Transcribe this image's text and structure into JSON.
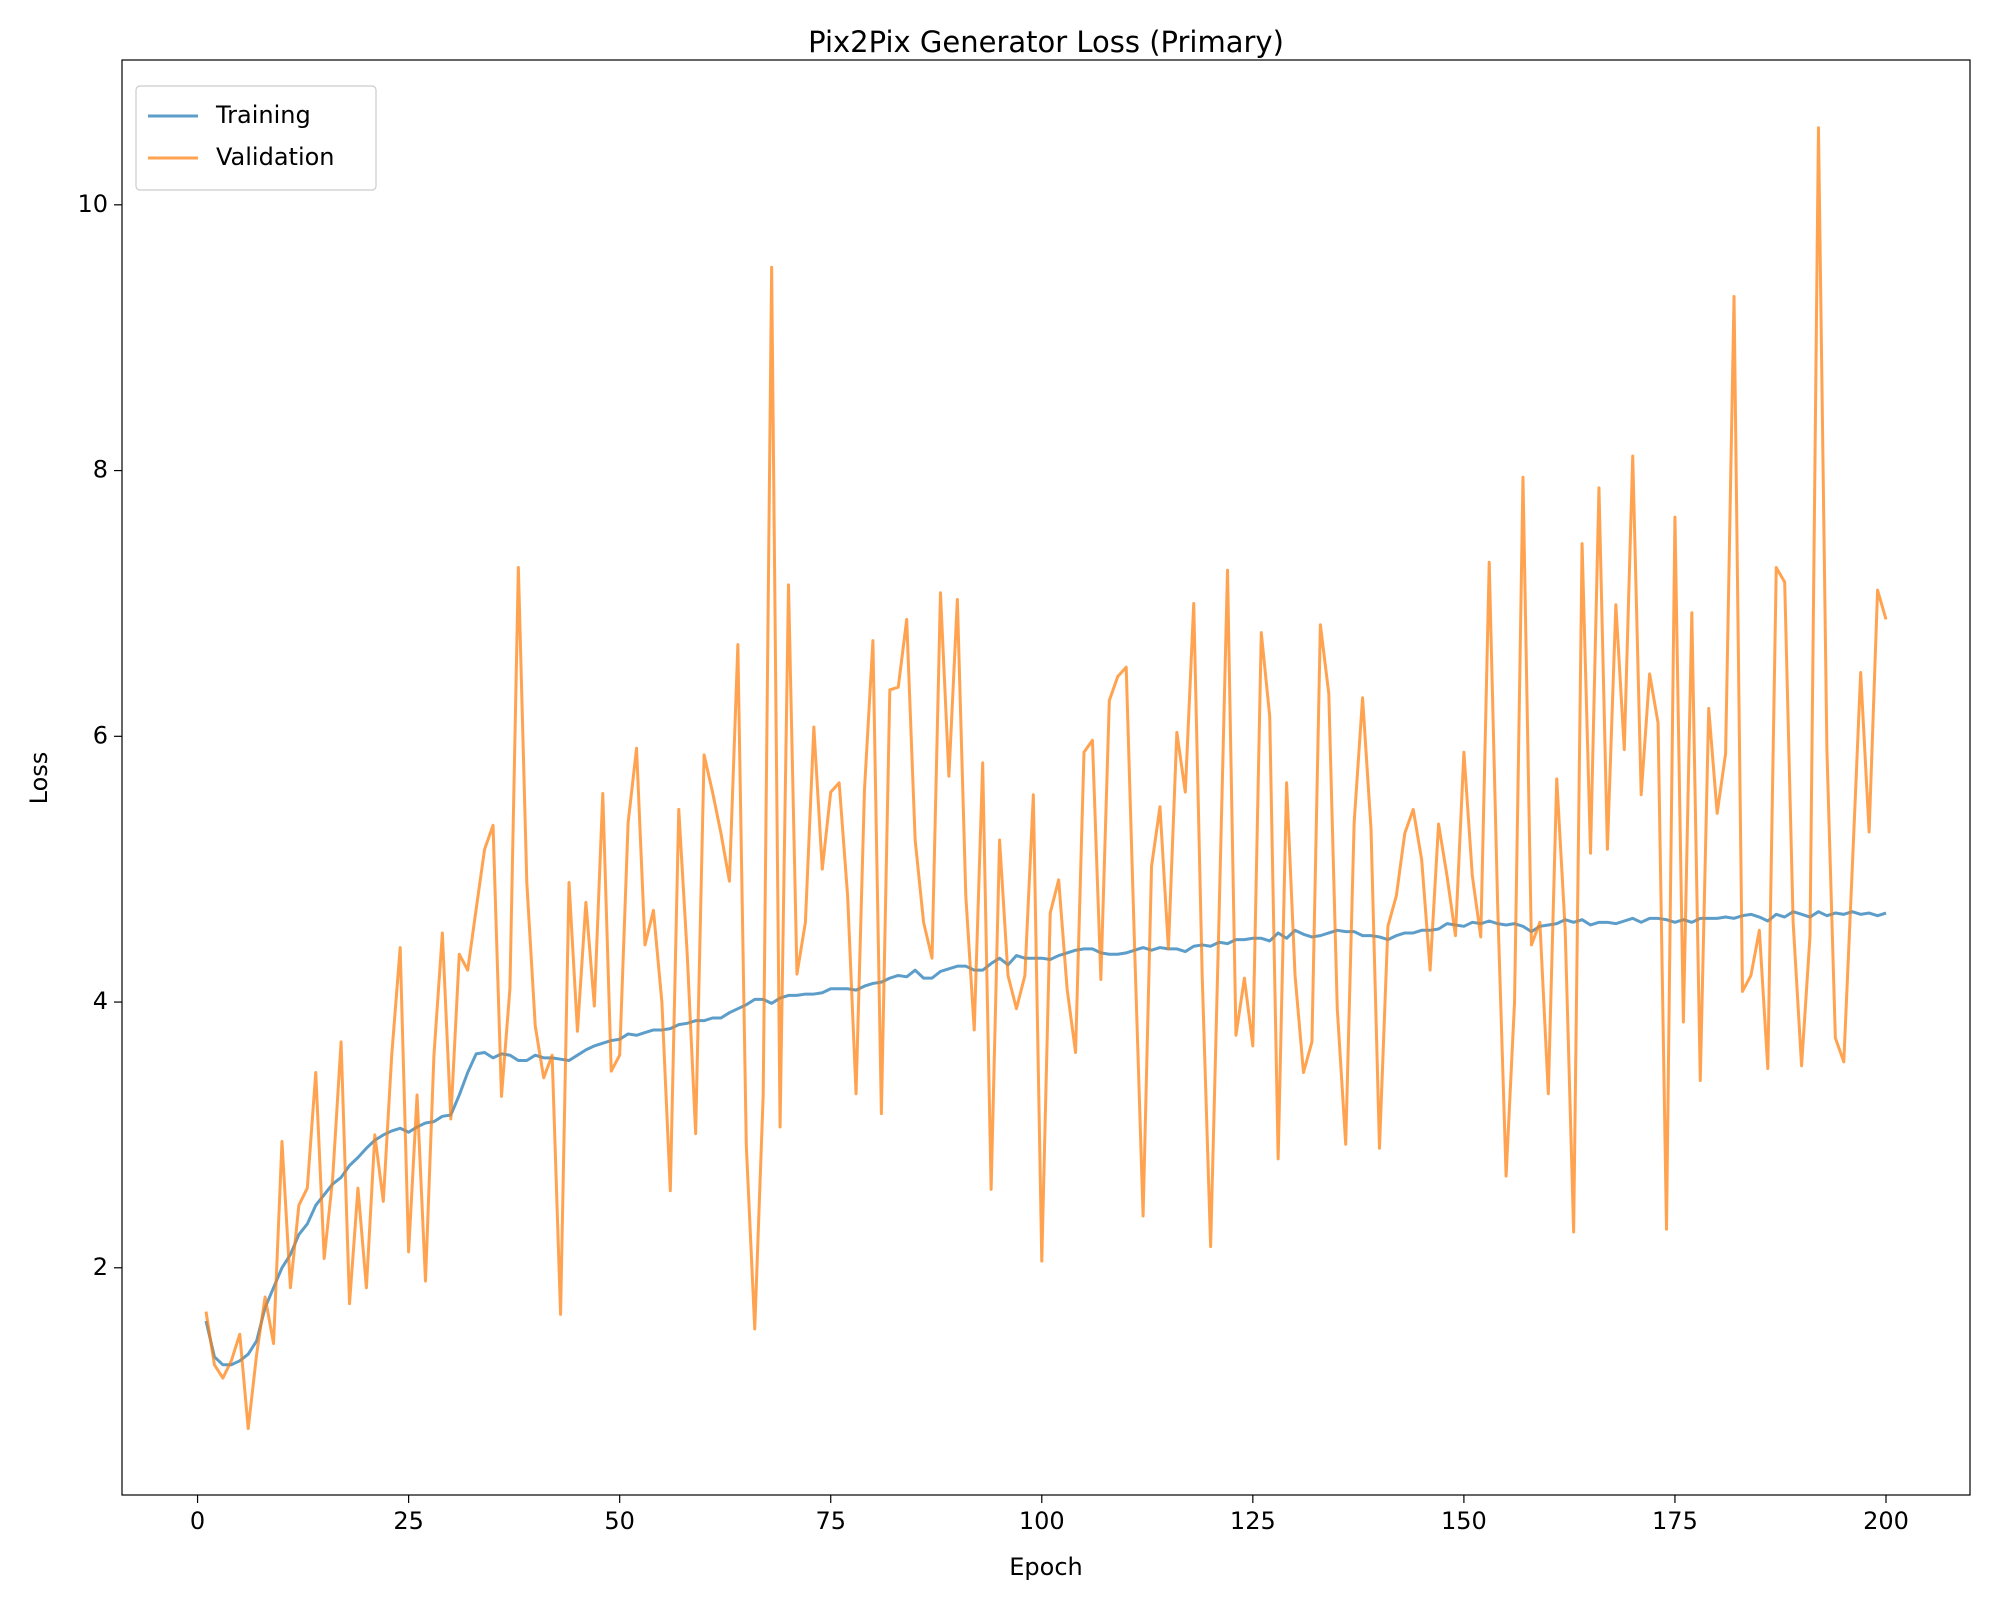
{
  "chart_data": {
    "type": "line",
    "title": "Pix2Pix Generator Loss (Primary)",
    "x_label": "Epoch",
    "y_label": "Loss",
    "x": [
      1,
      2,
      3,
      4,
      5,
      6,
      7,
      8,
      9,
      10,
      11,
      12,
      13,
      14,
      15,
      16,
      17,
      18,
      19,
      20,
      21,
      22,
      23,
      24,
      25,
      26,
      27,
      28,
      29,
      30,
      31,
      32,
      33,
      34,
      35,
      36,
      37,
      38,
      39,
      40,
      41,
      42,
      43,
      44,
      45,
      46,
      47,
      48,
      49,
      50,
      51,
      52,
      53,
      54,
      55,
      56,
      57,
      58,
      59,
      60,
      61,
      62,
      63,
      64,
      65,
      66,
      67,
      68,
      69,
      70,
      71,
      72,
      73,
      74,
      75,
      76,
      77,
      78,
      79,
      80,
      81,
      82,
      83,
      84,
      85,
      86,
      87,
      88,
      89,
      90,
      91,
      92,
      93,
      94,
      95,
      96,
      97,
      98,
      99,
      100,
      101,
      102,
      103,
      104,
      105,
      106,
      107,
      108,
      109,
      110,
      111,
      112,
      113,
      114,
      115,
      116,
      117,
      118,
      119,
      120,
      121,
      122,
      123,
      124,
      125,
      126,
      127,
      128,
      129,
      130,
      131,
      132,
      133,
      134,
      135,
      136,
      137,
      138,
      139,
      140,
      141,
      142,
      143,
      144,
      145,
      146,
      147,
      148,
      149,
      150,
      151,
      152,
      153,
      154,
      155,
      156,
      157,
      158,
      159,
      160,
      161,
      162,
      163,
      164,
      165,
      166,
      167,
      168,
      169,
      170,
      171,
      172,
      173,
      174,
      175,
      176,
      177,
      178,
      179,
      180,
      181,
      182,
      183,
      184,
      185,
      186,
      187,
      188,
      189,
      190,
      191,
      192,
      193,
      194,
      195,
      196,
      197,
      198,
      199,
      200
    ],
    "series": [
      {
        "name": "Training",
        "color": "#1f77b4",
        "values": [
          1.6,
          1.33,
          1.27,
          1.27,
          1.3,
          1.35,
          1.45,
          1.7,
          1.85,
          2.0,
          2.1,
          2.25,
          2.33,
          2.47,
          2.55,
          2.63,
          2.68,
          2.77,
          2.83,
          2.9,
          2.96,
          3.0,
          3.03,
          3.05,
          3.02,
          3.06,
          3.09,
          3.1,
          3.14,
          3.15,
          3.3,
          3.47,
          3.61,
          3.62,
          3.58,
          3.61,
          3.6,
          3.56,
          3.56,
          3.6,
          3.58,
          3.58,
          3.57,
          3.56,
          3.6,
          3.64,
          3.67,
          3.69,
          3.71,
          3.72,
          3.76,
          3.75,
          3.77,
          3.79,
          3.79,
          3.8,
          3.83,
          3.84,
          3.86,
          3.86,
          3.88,
          3.88,
          3.92,
          3.95,
          3.98,
          4.02,
          4.02,
          3.99,
          4.03,
          4.05,
          4.05,
          4.06,
          4.06,
          4.07,
          4.1,
          4.1,
          4.1,
          4.09,
          4.12,
          4.14,
          4.15,
          4.18,
          4.2,
          4.19,
          4.24,
          4.18,
          4.18,
          4.23,
          4.25,
          4.27,
          4.27,
          4.24,
          4.24,
          4.29,
          4.33,
          4.28,
          4.35,
          4.33,
          4.33,
          4.33,
          4.32,
          4.35,
          4.37,
          4.39,
          4.4,
          4.4,
          4.37,
          4.36,
          4.36,
          4.37,
          4.39,
          4.41,
          4.39,
          4.41,
          4.4,
          4.4,
          4.38,
          4.42,
          4.43,
          4.42,
          4.45,
          4.44,
          4.47,
          4.47,
          4.48,
          4.48,
          4.46,
          4.52,
          4.48,
          4.54,
          4.51,
          4.49,
          4.5,
          4.52,
          4.54,
          4.53,
          4.53,
          4.5,
          4.5,
          4.49,
          4.47,
          4.5,
          4.52,
          4.52,
          4.54,
          4.54,
          4.55,
          4.59,
          4.58,
          4.57,
          4.6,
          4.59,
          4.61,
          4.59,
          4.58,
          4.59,
          4.57,
          4.53,
          4.57,
          4.58,
          4.59,
          4.62,
          4.6,
          4.62,
          4.58,
          4.6,
          4.6,
          4.59,
          4.61,
          4.63,
          4.6,
          4.63,
          4.63,
          4.62,
          4.6,
          4.62,
          4.6,
          4.63,
          4.63,
          4.63,
          4.64,
          4.63,
          4.65,
          4.66,
          4.64,
          4.61,
          4.66,
          4.64,
          4.68,
          4.66,
          4.64,
          4.68,
          4.65,
          4.67,
          4.66,
          4.68,
          4.66,
          4.67,
          4.65,
          4.67
        ]
      },
      {
        "name": "Validation",
        "color": "#ff7f0e",
        "values": [
          1.67,
          1.27,
          1.17,
          1.3,
          1.5,
          0.79,
          1.35,
          1.78,
          1.43,
          2.95,
          1.85,
          2.47,
          2.6,
          3.47,
          2.07,
          2.67,
          3.7,
          1.73,
          2.6,
          1.85,
          3.0,
          2.5,
          3.6,
          4.41,
          2.12,
          3.3,
          1.9,
          3.6,
          4.52,
          3.12,
          4.36,
          4.24,
          4.7,
          5.15,
          5.33,
          3.29,
          4.1,
          7.27,
          4.9,
          3.82,
          3.43,
          3.6,
          1.65,
          4.9,
          3.78,
          4.75,
          3.97,
          5.57,
          3.48,
          3.6,
          5.35,
          5.91,
          4.43,
          4.69,
          4.0,
          2.58,
          5.45,
          4.36,
          3.01,
          5.86,
          5.58,
          5.27,
          4.91,
          6.69,
          2.92,
          1.54,
          3.3,
          9.53,
          3.06,
          7.14,
          4.21,
          4.6,
          6.07,
          5.0,
          5.58,
          5.65,
          4.8,
          3.31,
          5.6,
          6.72,
          3.16,
          6.35,
          6.37,
          6.88,
          5.22,
          4.6,
          4.33,
          7.08,
          5.7,
          7.03,
          4.8,
          3.79,
          5.8,
          2.59,
          5.22,
          4.2,
          3.95,
          4.2,
          5.56,
          2.05,
          4.67,
          4.92,
          4.1,
          3.62,
          5.88,
          5.97,
          4.17,
          6.27,
          6.45,
          6.52,
          4.4,
          2.39,
          5.02,
          5.47,
          4.4,
          6.03,
          5.58,
          7.0,
          4.2,
          2.16,
          4.65,
          7.25,
          3.75,
          4.18,
          3.67,
          6.78,
          6.15,
          2.82,
          5.65,
          4.2,
          3.47,
          3.7,
          6.84,
          6.32,
          3.95,
          2.93,
          5.35,
          6.29,
          5.3,
          2.9,
          4.57,
          4.8,
          5.27,
          5.45,
          5.07,
          4.24,
          5.34,
          4.95,
          4.5,
          5.88,
          4.95,
          4.49,
          7.31,
          4.73,
          2.69,
          4.0,
          7.95,
          4.43,
          4.6,
          3.31,
          5.68,
          4.54,
          2.27,
          7.45,
          5.12,
          7.87,
          5.15,
          6.99,
          5.9,
          8.11,
          5.56,
          6.47,
          6.1,
          2.29,
          7.65,
          3.85,
          6.93,
          3.41,
          6.21,
          5.42,
          5.87,
          9.31,
          4.08,
          4.2,
          4.54,
          3.5,
          7.27,
          7.16,
          4.6,
          3.52,
          4.5,
          10.58,
          5.9,
          3.73,
          3.55,
          5.0,
          6.48,
          5.28,
          7.1,
          6.88
        ]
      }
    ],
    "xlim": [
      -8.95,
      209.95
    ],
    "ylim": [
      0.29,
      11.09
    ],
    "xticks": [
      0,
      25,
      50,
      75,
      100,
      125,
      150,
      175,
      200
    ],
    "yticks": [
      2,
      4,
      6,
      8,
      10
    ],
    "grid": false,
    "legend": "upper left"
  }
}
